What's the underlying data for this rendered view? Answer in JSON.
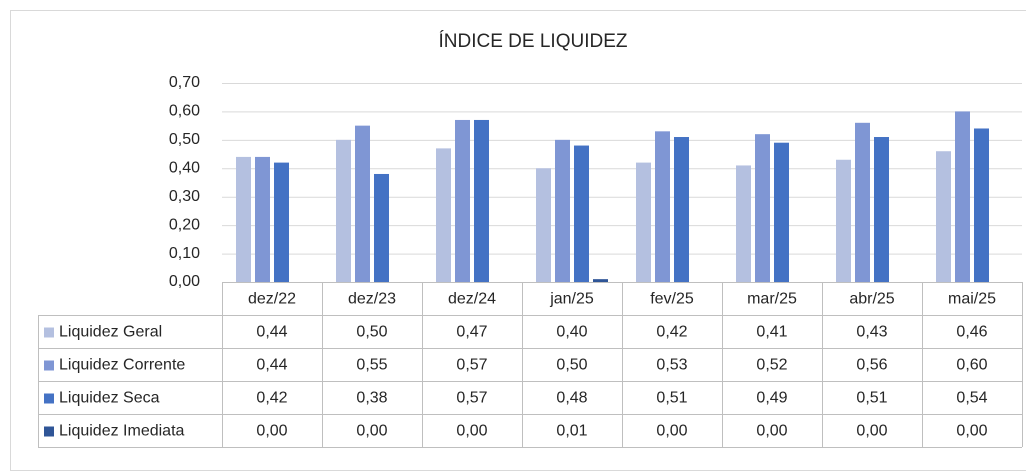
{
  "chart_data": {
    "type": "bar",
    "title": "ÍNDICE DE LIQUIDEZ",
    "categories": [
      "dez/22",
      "dez/23",
      "dez/24",
      "jan/25",
      "fev/25",
      "mar/25",
      "abr/25",
      "mai/25"
    ],
    "series": [
      {
        "name": "Liquidez Geral",
        "color": "#b4c0e0",
        "values": [
          0.44,
          0.5,
          0.47,
          0.4,
          0.42,
          0.41,
          0.43,
          0.46
        ],
        "value_labels": [
          "0,44",
          "0,50",
          "0,47",
          "0,40",
          "0,42",
          "0,41",
          "0,43",
          "0,46"
        ]
      },
      {
        "name": "Liquidez Corrente",
        "color": "#7f96d4",
        "values": [
          0.44,
          0.55,
          0.57,
          0.5,
          0.53,
          0.52,
          0.56,
          0.6
        ],
        "value_labels": [
          "0,44",
          "0,55",
          "0,57",
          "0,50",
          "0,53",
          "0,52",
          "0,56",
          "0,60"
        ]
      },
      {
        "name": "Liquidez Seca",
        "color": "#4472c4",
        "values": [
          0.42,
          0.38,
          0.57,
          0.48,
          0.51,
          0.49,
          0.51,
          0.54
        ],
        "value_labels": [
          "0,42",
          "0,38",
          "0,57",
          "0,48",
          "0,51",
          "0,49",
          "0,51",
          "0,54"
        ]
      },
      {
        "name": "Liquidez Imediata",
        "color": "#2f5597",
        "values": [
          0.0,
          0.0,
          0.0,
          0.01,
          0.0,
          0.0,
          0.0,
          0.0
        ],
        "value_labels": [
          "0,00",
          "0,00",
          "0,00",
          "0,01",
          "0,00",
          "0,00",
          "0,00",
          "0,00"
        ]
      }
    ],
    "ylim": [
      0,
      0.7
    ],
    "yticks": [
      {
        "value": 0,
        "label": "0,00"
      },
      {
        "value": 0.1,
        "label": "0,10"
      },
      {
        "value": 0.2,
        "label": "0,20"
      },
      {
        "value": 0.3,
        "label": "0,30"
      },
      {
        "value": 0.4,
        "label": "0,40"
      },
      {
        "value": 0.5,
        "label": "0,50"
      },
      {
        "value": 0.6,
        "label": "0,60"
      },
      {
        "value": 0.7,
        "label": "0,70"
      }
    ],
    "grid": true
  }
}
